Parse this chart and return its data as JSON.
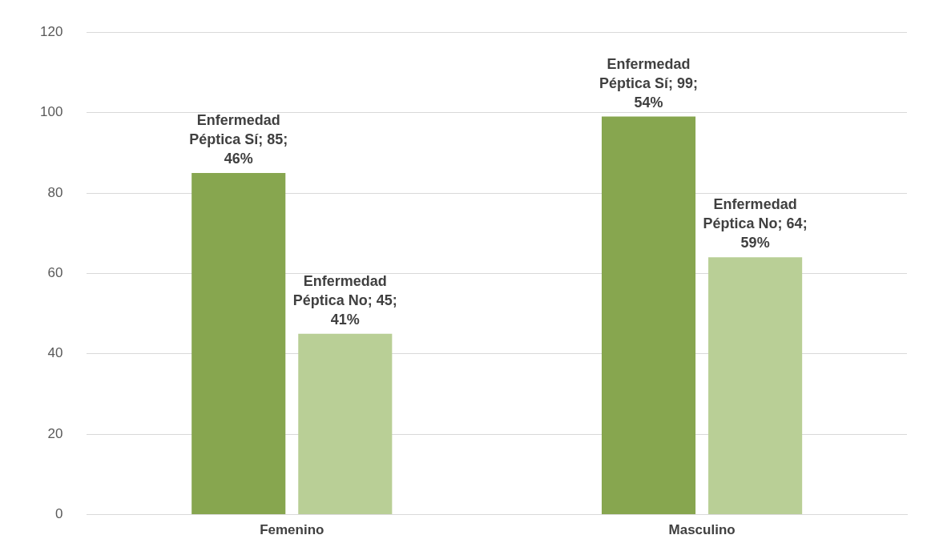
{
  "chart_data": {
    "type": "bar",
    "categories": [
      "Femenino",
      "Masculino"
    ],
    "series": [
      {
        "color": "#87a64f",
        "values": [
          85,
          99
        ],
        "value_labels": [
          "Enfermedad Péptica Sí; 85; 46%",
          "Enfermedad Péptica Sí; 99; 54%"
        ]
      },
      {
        "color": "#b9cf96",
        "values": [
          45,
          64
        ],
        "value_labels": [
          "Enfermedad Péptica No; 45; 41%",
          "Enfermedad Péptica No; 64; 59%"
        ]
      }
    ],
    "ylim": [
      0,
      120
    ],
    "yticks": [
      0,
      20,
      40,
      60,
      80,
      100,
      120
    ],
    "grid": "y",
    "legend": false
  }
}
